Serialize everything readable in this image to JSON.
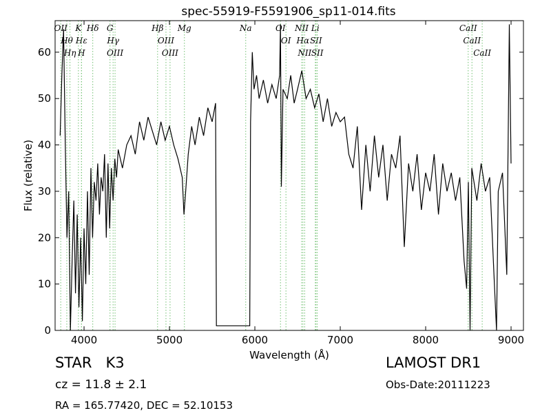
{
  "chart_data": {
    "type": "line",
    "title": "spec-55919-F5591906_sp11-014.fits",
    "xlabel": "Wavelength (Å)",
    "ylabel": "Flux (relative)",
    "xlim": [
      3661,
      9145
    ],
    "ylim": [
      0,
      66.8
    ],
    "xticks": [
      4000,
      5000,
      6000,
      7000,
      8000,
      9000
    ],
    "yticks": [
      0,
      10,
      20,
      30,
      40,
      50,
      60
    ],
    "color": "#000000",
    "line_color": "#6fbf6f",
    "x": [
      3720,
      3740,
      3760,
      3780,
      3800,
      3820,
      3840,
      3860,
      3880,
      3900,
      3920,
      3940,
      3960,
      3980,
      4000,
      4020,
      4040,
      4060,
      4080,
      4100,
      4120,
      4140,
      4160,
      4180,
      4200,
      4220,
      4240,
      4260,
      4280,
      4300,
      4320,
      4340,
      4360,
      4380,
      4400,
      4450,
      4500,
      4550,
      4600,
      4650,
      4700,
      4750,
      4800,
      4850,
      4900,
      4950,
      5000,
      5050,
      5100,
      5150,
      5170,
      5190,
      5220,
      5260,
      5300,
      5350,
      5400,
      5450,
      5500,
      5540,
      5550,
      5940,
      5950,
      5970,
      5990,
      6020,
      6050,
      6100,
      6150,
      6200,
      6250,
      6290,
      6300,
      6310,
      6330,
      6380,
      6420,
      6460,
      6500,
      6550,
      6600,
      6650,
      6700,
      6750,
      6800,
      6850,
      6900,
      6950,
      7000,
      7050,
      7100,
      7150,
      7200,
      7250,
      7300,
      7350,
      7400,
      7450,
      7500,
      7550,
      7600,
      7650,
      7700,
      7750,
      7800,
      7850,
      7900,
      7950,
      8000,
      8050,
      8100,
      8150,
      8200,
      8250,
      8300,
      8350,
      8400,
      8450,
      8480,
      8500,
      8520,
      8540,
      8600,
      8650,
      8700,
      8750,
      8800,
      8830,
      8850,
      8900,
      8950,
      8980,
      9000
    ],
    "values": [
      42,
      55,
      65,
      40,
      20,
      30,
      0,
      15,
      28,
      8,
      25,
      5,
      20,
      2,
      22,
      10,
      30,
      12,
      35,
      20,
      32,
      28,
      36,
      25,
      33,
      30,
      38,
      20,
      36,
      22,
      35,
      28,
      37,
      33,
      39,
      35,
      40,
      42,
      38,
      45,
      41,
      46,
      43,
      40,
      45,
      41,
      44,
      40,
      37,
      33,
      25,
      30,
      38,
      44,
      40,
      46,
      42,
      48,
      45,
      49,
      1,
      1,
      45,
      60,
      52,
      55,
      50,
      54,
      49,
      53,
      50,
      55,
      66,
      31,
      52,
      50,
      55,
      49,
      52,
      56,
      50,
      52,
      48,
      51,
      45,
      50,
      44,
      47,
      45,
      46,
      38,
      35,
      44,
      26,
      40,
      30,
      42,
      33,
      40,
      28,
      38,
      35,
      42,
      18,
      36,
      30,
      38,
      26,
      34,
      30,
      38,
      25,
      36,
      30,
      34,
      28,
      33,
      15,
      9,
      32,
      0,
      35,
      28,
      36,
      30,
      33,
      12,
      0,
      30,
      34,
      12,
      66,
      36
    ],
    "line_labels": [
      {
        "label": "OII",
        "x": 3727
      },
      {
        "label": "Hθ",
        "x": 3798
      },
      {
        "label": "Hη",
        "x": 3835
      },
      {
        "label": "K",
        "x": 3934
      },
      {
        "label": "Hε",
        "x": 3970
      },
      {
        "label": "H",
        "x": 3970
      },
      {
        "label": "Hδ",
        "x": 4102
      },
      {
        "label": "G",
        "x": 4304
      },
      {
        "label": "Hγ",
        "x": 4340
      },
      {
        "label": "OIII",
        "x": 4363
      },
      {
        "label": "Hβ",
        "x": 4861
      },
      {
        "label": "OIII",
        "x": 4959
      },
      {
        "label": "OIII",
        "x": 5007
      },
      {
        "label": "Mg",
        "x": 5175
      },
      {
        "label": "Na",
        "x": 5893
      },
      {
        "label": "OI",
        "x": 6300
      },
      {
        "label": "OI",
        "x": 6364
      },
      {
        "label": "NII",
        "x": 6548
      },
      {
        "label": "Hα",
        "x": 6563
      },
      {
        "label": "NII",
        "x": 6583
      },
      {
        "label": "Li",
        "x": 6708
      },
      {
        "label": "SII",
        "x": 6716
      },
      {
        "label": "SII",
        "x": 6731
      },
      {
        "label": "CaII",
        "x": 8498
      },
      {
        "label": "CaII",
        "x": 8542
      },
      {
        "label": "CaII",
        "x": 8662
      }
    ],
    "annotations": [
      "STAR   K3",
      "cz = 11.8 ± 2.1",
      "RA = 165.77420, DEC = 52.10153",
      "LAMOST DR1",
      "Obs-Date:20111223"
    ]
  }
}
